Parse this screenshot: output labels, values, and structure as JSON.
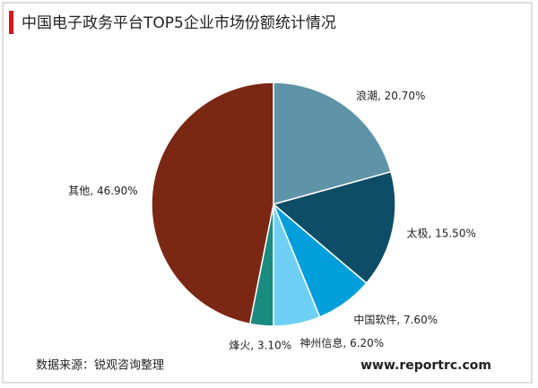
{
  "chart_data": {
    "type": "pie",
    "title": "中国电子政务平台TOP5企业市场份额统计情况",
    "categories": [
      "浪潮",
      "太极",
      "中国软件",
      "神州信息",
      "烽火",
      "其他"
    ],
    "values": [
      20.7,
      15.5,
      7.6,
      6.2,
      3.1,
      46.9
    ],
    "value_labels": [
      "20.70%",
      "15.50%",
      "7.60%",
      "6.20%",
      "3.10%",
      "46.90%"
    ],
    "label_separator": ", ",
    "colors": [
      "#5f93a8",
      "#0e4d66",
      "#009fdc",
      "#6ed0f5",
      "#1a8c7f",
      "#7a2713"
    ],
    "source": "数据来源：锐观咨询整理",
    "website": "www.reportrc.com"
  }
}
